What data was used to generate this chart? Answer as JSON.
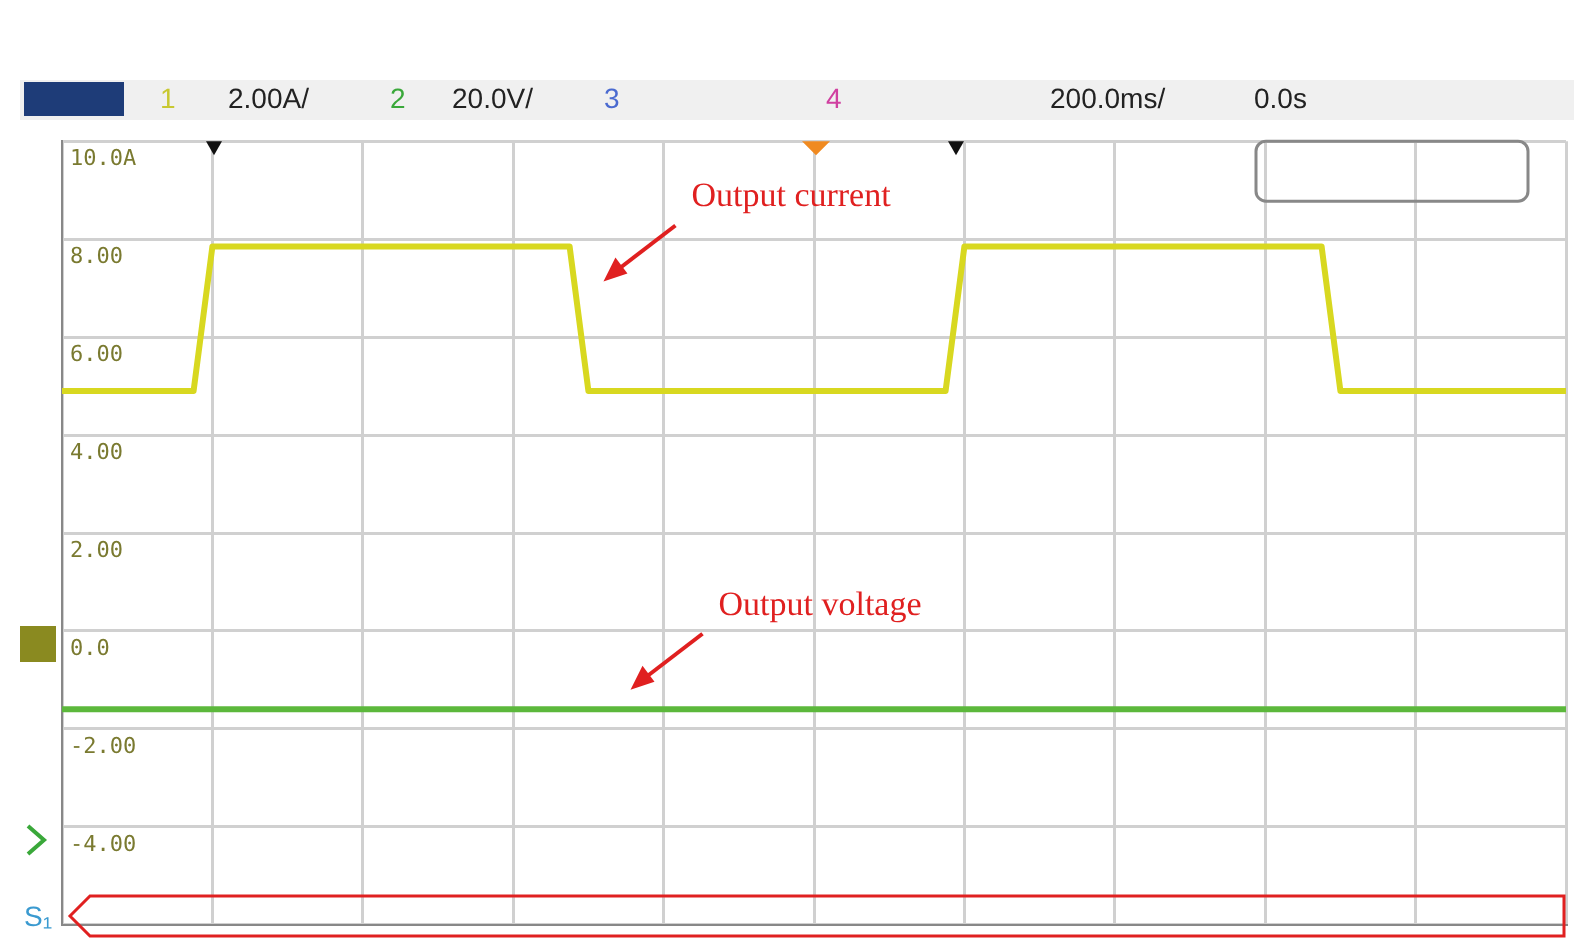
{
  "chart_data": {
    "type": "line",
    "categories": [
      null,
      null,
      null,
      null,
      null,
      null,
      null,
      null,
      null,
      null,
      null,
      null,
      null,
      null,
      null,
      null,
      null,
      null,
      null,
      null,
      null,
      null,
      null,
      null,
      null,
      null,
      null,
      null,
      null,
      null,
      null,
      null,
      null,
      null,
      null,
      null,
      null,
      null,
      null,
      null,
      null,
      null,
      null,
      null,
      null,
      null,
      null,
      null,
      null,
      null,
      null,
      null,
      null,
      null,
      null,
      null,
      null,
      null,
      null,
      null,
      null,
      null,
      null,
      null,
      null,
      null,
      null,
      null,
      null,
      null,
      null,
      null,
      null,
      null,
      null,
      null,
      null,
      null,
      null,
      null,
      null
    ],
    "ylim": [
      -6,
      10
    ],
    "yticks": [
      {
        "value": -6,
        "label": null
      },
      {
        "value": -4,
        "label": "-4.00"
      },
      {
        "value": -2,
        "label": "-2.00"
      },
      {
        "value": 0,
        "label": "0.0"
      },
      {
        "value": 2,
        "label": "2.00"
      },
      {
        "value": 4,
        "label": "4.00"
      },
      {
        "value": 6,
        "label": "6.00"
      },
      {
        "value": 8,
        "label": "8.00"
      },
      {
        "value": 10,
        "label": "10.0A"
      }
    ],
    "series": [
      {
        "color": "#d8d820",
        "values": [
          4.9,
          4.9,
          4.9,
          4.9,
          4.9,
          4.9,
          4.9,
          4.9,
          7.85,
          7.85,
          7.85,
          7.85,
          7.85,
          7.85,
          7.85,
          7.85,
          7.85,
          7.85,
          7.85,
          7.85,
          7.85,
          7.85,
          7.85,
          7.85,
          7.85,
          7.85,
          7.85,
          7.85,
          4.9,
          4.9,
          4.9,
          4.9,
          4.9,
          4.9,
          4.9,
          4.9,
          4.9,
          4.9,
          4.9,
          4.9,
          4.9,
          4.9,
          4.9,
          4.9,
          4.9,
          4.9,
          4.9,
          4.9,
          7.85,
          7.85,
          7.85,
          7.85,
          7.85,
          7.85,
          7.85,
          7.85,
          7.85,
          7.85,
          7.85,
          7.85,
          7.85,
          7.85,
          7.85,
          7.85,
          7.85,
          7.85,
          7.85,
          7.85,
          4.9,
          4.9,
          4.9,
          4.9,
          4.9,
          4.9,
          4.9,
          4.9,
          4.9,
          4.9,
          4.9,
          4.9,
          4.9
        ]
      },
      {
        "color": "#5cb83c",
        "values": [
          -1.6,
          -1.6,
          -1.6,
          -1.6,
          -1.6,
          -1.6,
          -1.6,
          -1.6,
          -1.6,
          -1.6,
          -1.6,
          -1.6,
          -1.6,
          -1.6,
          -1.6,
          -1.6,
          -1.6,
          -1.6,
          -1.6,
          -1.6,
          -1.6,
          -1.6,
          -1.6,
          -1.6,
          -1.6,
          -1.6,
          -1.6,
          -1.6,
          -1.6,
          -1.6,
          -1.6,
          -1.6,
          -1.6,
          -1.6,
          -1.6,
          -1.6,
          -1.6,
          -1.6,
          -1.6,
          -1.6,
          -1.6,
          -1.6,
          -1.6,
          -1.6,
          -1.6,
          -1.6,
          -1.6,
          -1.6,
          -1.6,
          -1.6,
          -1.6,
          -1.6,
          -1.6,
          -1.6,
          -1.6,
          -1.6,
          -1.6,
          -1.6,
          -1.6,
          -1.6,
          -1.6,
          -1.6,
          -1.6,
          -1.6,
          -1.6,
          -1.6,
          -1.6,
          -1.6,
          -1.6,
          -1.6,
          -1.6,
          -1.6,
          -1.6,
          -1.6,
          -1.6,
          -1.6,
          -1.6,
          -1.6,
          -1.6,
          -1.6,
          -1.6
        ]
      }
    ],
    "grid": true,
    "tick_labels": "y",
    "annotations": [
      "Output current",
      "Output voltage",
      "1",
      "2.00A/",
      "2",
      "20.0V/",
      "3",
      "4",
      "200.0ms/",
      "0.0s",
      "S₁"
    ]
  }
}
